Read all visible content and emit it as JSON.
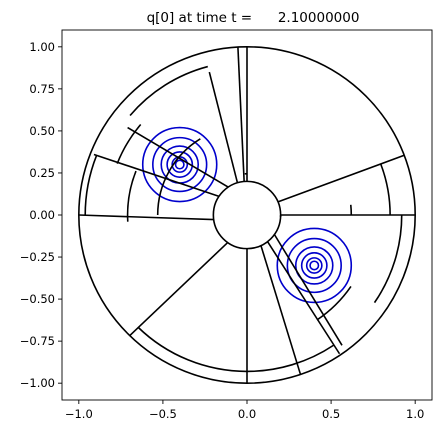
{
  "chart_data": {
    "type": "contour",
    "title": "q[0] at time t =      2.10000000",
    "xlim": [
      -1.1,
      1.1
    ],
    "ylim": [
      -1.1,
      1.1
    ],
    "xticks": [
      -1.0,
      -0.5,
      0.0,
      0.5,
      1.0
    ],
    "xtick_labels": [
      "−1.0",
      "−0.5",
      "0.0",
      "0.5",
      "1.0"
    ],
    "yticks": [
      1.0,
      0.75,
      0.5,
      0.25,
      0.0,
      -0.25,
      -0.5,
      -0.75,
      -1.0
    ],
    "ytick_labels": [
      "1.00",
      "0.75",
      "0.50",
      "0.25",
      "0.00",
      "−0.25",
      "−0.50",
      "−0.75",
      "−1.00"
    ],
    "grid": false,
    "annulus": {
      "inner_radius": 0.2,
      "outer_radius": 1.0
    },
    "patch_edges": [
      [
        [
          -0.198,
          -0.027
        ],
        [
          -1.0,
          0.0
        ]
      ],
      [
        [
          -0.166,
          0.111
        ],
        [
          -0.91,
          0.36
        ]
      ],
      [
        [
          -0.112,
          0.166
        ],
        [
          -0.71,
          0.52
        ]
      ],
      [
        [
          -0.057,
          0.192
        ],
        [
          -0.224,
          0.85
        ]
      ],
      [
        [
          -0.017,
          0.199
        ],
        [
          -0.054,
          0.998
        ]
      ],
      [
        [
          0.0,
          0.2
        ],
        [
          0.0,
          1.0
        ]
      ],
      [
        [
          0.184,
          0.078
        ],
        [
          0.935,
          0.355
        ]
      ],
      [
        [
          0.2,
          0.0
        ],
        [
          1.0,
          0.0
        ]
      ],
      [
        [
          0.0,
          -0.2
        ],
        [
          0.0,
          -1.0
        ]
      ],
      [
        [
          -0.115,
          -0.164
        ],
        [
          -0.7,
          -0.72
        ]
      ],
      [
        [
          0.122,
          -0.158
        ],
        [
          0.55,
          -0.825
        ]
      ],
      [
        [
          0.083,
          -0.182
        ],
        [
          0.318,
          -0.948
        ]
      ],
      [
        [
          0.163,
          -0.116
        ],
        [
          0.565,
          -0.775
        ]
      ],
      [
        [
          0.2,
          0.0
        ],
        [
          0.2,
          -0.012
        ]
      ]
    ],
    "patch_arcs": [
      {
        "r": 0.962,
        "deg_from": 180,
        "deg_to": 158.4
      },
      {
        "r": 0.83,
        "deg_from": 158.4,
        "deg_to": 139.6
      },
      {
        "r": 0.71,
        "deg_from": 183.2,
        "deg_to": 158.4
      },
      {
        "r": 0.531,
        "deg_from": 180,
        "deg_to": 121.5
      },
      {
        "r": 0.913,
        "deg_from": 139.6,
        "deg_to": 104.8
      },
      {
        "r": 0.245,
        "deg_from": 93.1,
        "deg_to": 90.0
      },
      {
        "r": 0.851,
        "deg_from": 20.8,
        "deg_to": 0
      },
      {
        "r": 0.92,
        "deg_from": 0,
        "deg_to": -34.5
      },
      {
        "r": 0.75,
        "deg_from": -34.5,
        "deg_to": -56.3
      },
      {
        "r": 0.93,
        "deg_from": -56.3,
        "deg_to": -90
      },
      {
        "r": 0.93,
        "deg_from": -90,
        "deg_to": -134.2
      },
      {
        "r": 0.62,
        "deg_from": 0,
        "deg_to": 5.6
      }
    ],
    "contour_centers": [
      [
        -0.4,
        0.3
      ],
      [
        0.4,
        -0.3
      ]
    ],
    "contour_radii": [
      0.22,
      0.16,
      0.11,
      0.075,
      0.045,
      0.025
    ]
  }
}
